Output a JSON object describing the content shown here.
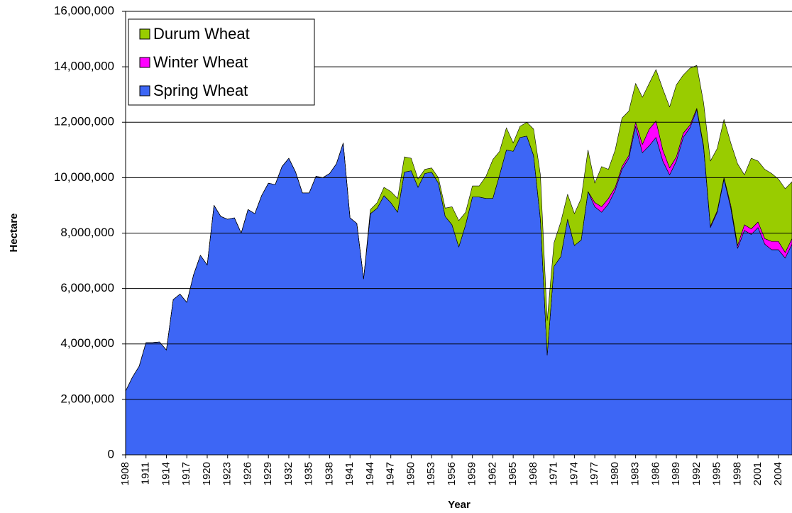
{
  "chart_data": {
    "type": "stacked-area",
    "x_label": "Year",
    "y_label": "Hectare",
    "x": [
      1908,
      1909,
      1910,
      1911,
      1912,
      1913,
      1914,
      1915,
      1916,
      1917,
      1918,
      1919,
      1920,
      1921,
      1922,
      1923,
      1924,
      1925,
      1926,
      1927,
      1928,
      1929,
      1930,
      1931,
      1932,
      1933,
      1934,
      1935,
      1936,
      1937,
      1938,
      1939,
      1940,
      1941,
      1942,
      1943,
      1944,
      1945,
      1946,
      1947,
      1948,
      1949,
      1950,
      1951,
      1952,
      1953,
      1954,
      1955,
      1956,
      1957,
      1958,
      1959,
      1960,
      1961,
      1962,
      1963,
      1964,
      1965,
      1966,
      1967,
      1968,
      1969,
      1970,
      1971,
      1972,
      1973,
      1974,
      1975,
      1976,
      1977,
      1978,
      1979,
      1980,
      1981,
      1982,
      1983,
      1984,
      1985,
      1986,
      1987,
      1988,
      1989,
      1990,
      1991,
      1992,
      1993,
      1994,
      1995,
      1996,
      1997,
      1998,
      1999,
      2000,
      2001,
      2002,
      2003,
      2004,
      2005,
      2006
    ],
    "xlim": [
      1908,
      2006
    ],
    "xticks": [
      1908,
      1911,
      1914,
      1917,
      1920,
      1923,
      1926,
      1929,
      1932,
      1935,
      1938,
      1941,
      1944,
      1947,
      1950,
      1953,
      1956,
      1959,
      1962,
      1965,
      1968,
      1971,
      1974,
      1977,
      1980,
      1983,
      1986,
      1989,
      1992,
      1995,
      1998,
      2001,
      2004
    ],
    "ylim": [
      0,
      16000000
    ],
    "yticks": [
      0,
      {
        "value": 2000000,
        "label": "2,000,000"
      },
      {
        "value": 4000000,
        "label": "4,000,000"
      },
      {
        "value": 6000000,
        "label": "6,000,000"
      },
      {
        "value": 8000000,
        "label": "8,000,000"
      },
      {
        "value": 10000000,
        "label": "10,000,000"
      },
      {
        "value": 12000000,
        "label": "12,000,000"
      },
      {
        "value": 14000000,
        "label": "14,000,000"
      },
      {
        "value": 16000000,
        "label": "16,000,000"
      }
    ],
    "grid": true,
    "legend": "upper left",
    "series": [
      {
        "name": "Spring Wheat",
        "color": "#3d66f5",
        "values": [
          2300000,
          2800000,
          3200000,
          4050000,
          4050000,
          4070000,
          3780000,
          5600000,
          5800000,
          5500000,
          6500000,
          7200000,
          6850000,
          9000000,
          8600000,
          8500000,
          8550000,
          8000000,
          8850000,
          8700000,
          9350000,
          9800000,
          9750000,
          10400000,
          10700000,
          10200000,
          9450000,
          9450000,
          10050000,
          10000000,
          10150000,
          10500000,
          11250000,
          8550000,
          8350000,
          6350000,
          8700000,
          8900000,
          9350000,
          9100000,
          8750000,
          10200000,
          10250000,
          9650000,
          10150000,
          10200000,
          9800000,
          8600000,
          8300000,
          7500000,
          8300000,
          9300000,
          9300000,
          9250000,
          9250000,
          10100000,
          11000000,
          10950000,
          11450000,
          11500000,
          10800000,
          8500000,
          3600000,
          6800000,
          7150000,
          8500000,
          7550000,
          7750000,
          9500000,
          8950000,
          8750000,
          9050000,
          9550000,
          10300000,
          10700000,
          11850000,
          10900000,
          11150000,
          11450000,
          10600000,
          10100000,
          10600000,
          11450000,
          11800000,
          12450000,
          11100000,
          8200000,
          8750000,
          9950000,
          8900000,
          7450000,
          8100000,
          7950000,
          8200000,
          7600000,
          7400000,
          7400000,
          7100000,
          7600000
        ]
      },
      {
        "name": "Winter Wheat",
        "color": "#ff00ff",
        "values": [
          0,
          0,
          0,
          0,
          0,
          0,
          0,
          0,
          0,
          0,
          0,
          0,
          0,
          0,
          0,
          0,
          0,
          0,
          0,
          0,
          0,
          0,
          0,
          0,
          0,
          0,
          0,
          0,
          0,
          0,
          0,
          0,
          0,
          0,
          0,
          0,
          0,
          0,
          0,
          0,
          0,
          0,
          0,
          0,
          0,
          0,
          0,
          0,
          0,
          0,
          0,
          0,
          0,
          0,
          0,
          0,
          0,
          0,
          0,
          0,
          0,
          0,
          0,
          0,
          0,
          0,
          0,
          0,
          0,
          150000,
          200000,
          200000,
          100000,
          100000,
          100000,
          150000,
          300000,
          600000,
          600000,
          400000,
          250000,
          150000,
          150000,
          100000,
          50000,
          50000,
          50000,
          50000,
          50000,
          100000,
          100000,
          200000,
          200000,
          200000,
          200000,
          300000,
          300000,
          200000,
          200000
        ]
      },
      {
        "name": "Durum Wheat",
        "color": "#99cc00",
        "values": [
          0,
          0,
          0,
          0,
          0,
          0,
          0,
          0,
          0,
          0,
          0,
          0,
          0,
          0,
          0,
          0,
          0,
          0,
          0,
          0,
          0,
          0,
          0,
          0,
          0,
          0,
          0,
          0,
          0,
          0,
          0,
          0,
          0,
          0,
          0,
          0,
          150000,
          200000,
          300000,
          400000,
          500000,
          550000,
          450000,
          300000,
          150000,
          150000,
          200000,
          300000,
          650000,
          950000,
          450000,
          400000,
          400000,
          800000,
          1400000,
          850000,
          800000,
          300000,
          400000,
          500000,
          950000,
          1600000,
          1250000,
          850000,
          1250000,
          900000,
          1150000,
          1500000,
          1500000,
          700000,
          1450000,
          1050000,
          1350000,
          1750000,
          1600000,
          1400000,
          1700000,
          1650000,
          1850000,
          2200000,
          2200000,
          2600000,
          2100000,
          2050000,
          1550000,
          1550000,
          2350000,
          2250000,
          2100000,
          2250000,
          2950000,
          1800000,
          2550000,
          2200000,
          2500000,
          2450000,
          2250000,
          2300000,
          2050000
        ]
      }
    ]
  }
}
